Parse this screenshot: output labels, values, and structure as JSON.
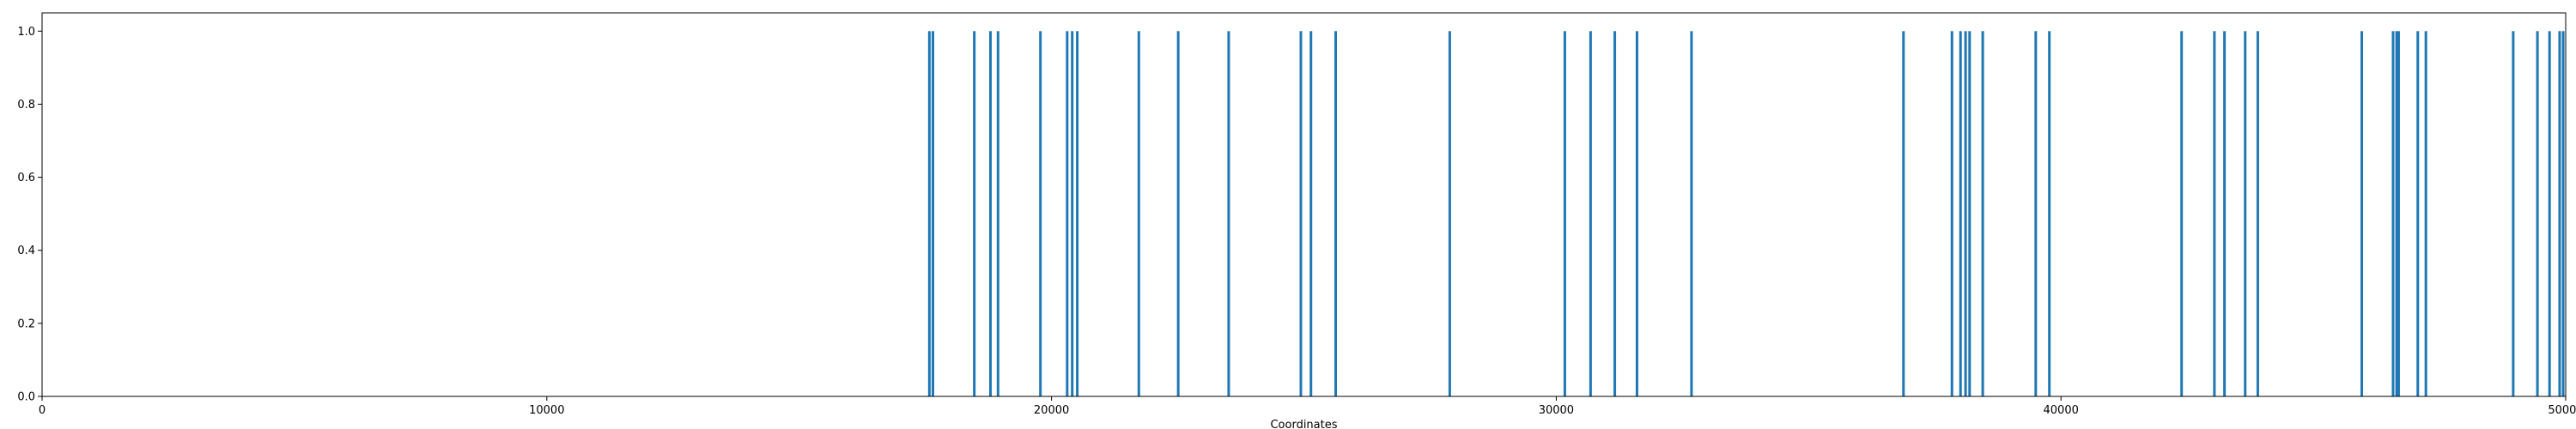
{
  "chart_data": {
    "type": "bar",
    "xlabel": "Coordinates",
    "ylabel": "",
    "title": "",
    "xlim": [
      0,
      50000
    ],
    "ylim": [
      0,
      1.05
    ],
    "grid": false,
    "color": "#1f77b4",
    "x_ticks": [
      {
        "value": 0,
        "label": "0"
      },
      {
        "value": 10000,
        "label": "10000"
      },
      {
        "value": 20000,
        "label": "20000"
      },
      {
        "value": 30000,
        "label": "30000"
      },
      {
        "value": 40000,
        "label": "40000"
      },
      {
        "value": 50000,
        "label": "50000"
      }
    ],
    "y_ticks": [
      {
        "value": 0,
        "label": "0.0"
      },
      {
        "value": 0.2,
        "label": "0.2"
      },
      {
        "value": 0.4,
        "label": "0.4"
      },
      {
        "value": 0.6,
        "label": "0.6"
      },
      {
        "value": 0.8,
        "label": "0.8"
      },
      {
        "value": 1.0,
        "label": "1.0"
      }
    ],
    "x": [
      17580,
      17650,
      18470,
      18790,
      18940,
      19780,
      20310,
      20410,
      20510,
      21730,
      22510,
      23510,
      24940,
      25140,
      25630,
      27890,
      30170,
      30680,
      31160,
      31600,
      32680,
      36880,
      37840,
      38010,
      38110,
      38190,
      38450,
      39500,
      39770,
      42390,
      43040,
      43240,
      43650,
      43900,
      45960,
      46580,
      46650,
      46690,
      47070,
      47230,
      48960,
      49440,
      49680,
      49880,
      49950
    ],
    "values": [
      1,
      1,
      1,
      1,
      1,
      1,
      1,
      1,
      1,
      1,
      1,
      1,
      1,
      1,
      1,
      1,
      1,
      1,
      1,
      1,
      1,
      1,
      1,
      1,
      1,
      1,
      1,
      1,
      1,
      1,
      1,
      1,
      1,
      1,
      1,
      1,
      1,
      1,
      1,
      1,
      1,
      1,
      1,
      1,
      1
    ]
  }
}
